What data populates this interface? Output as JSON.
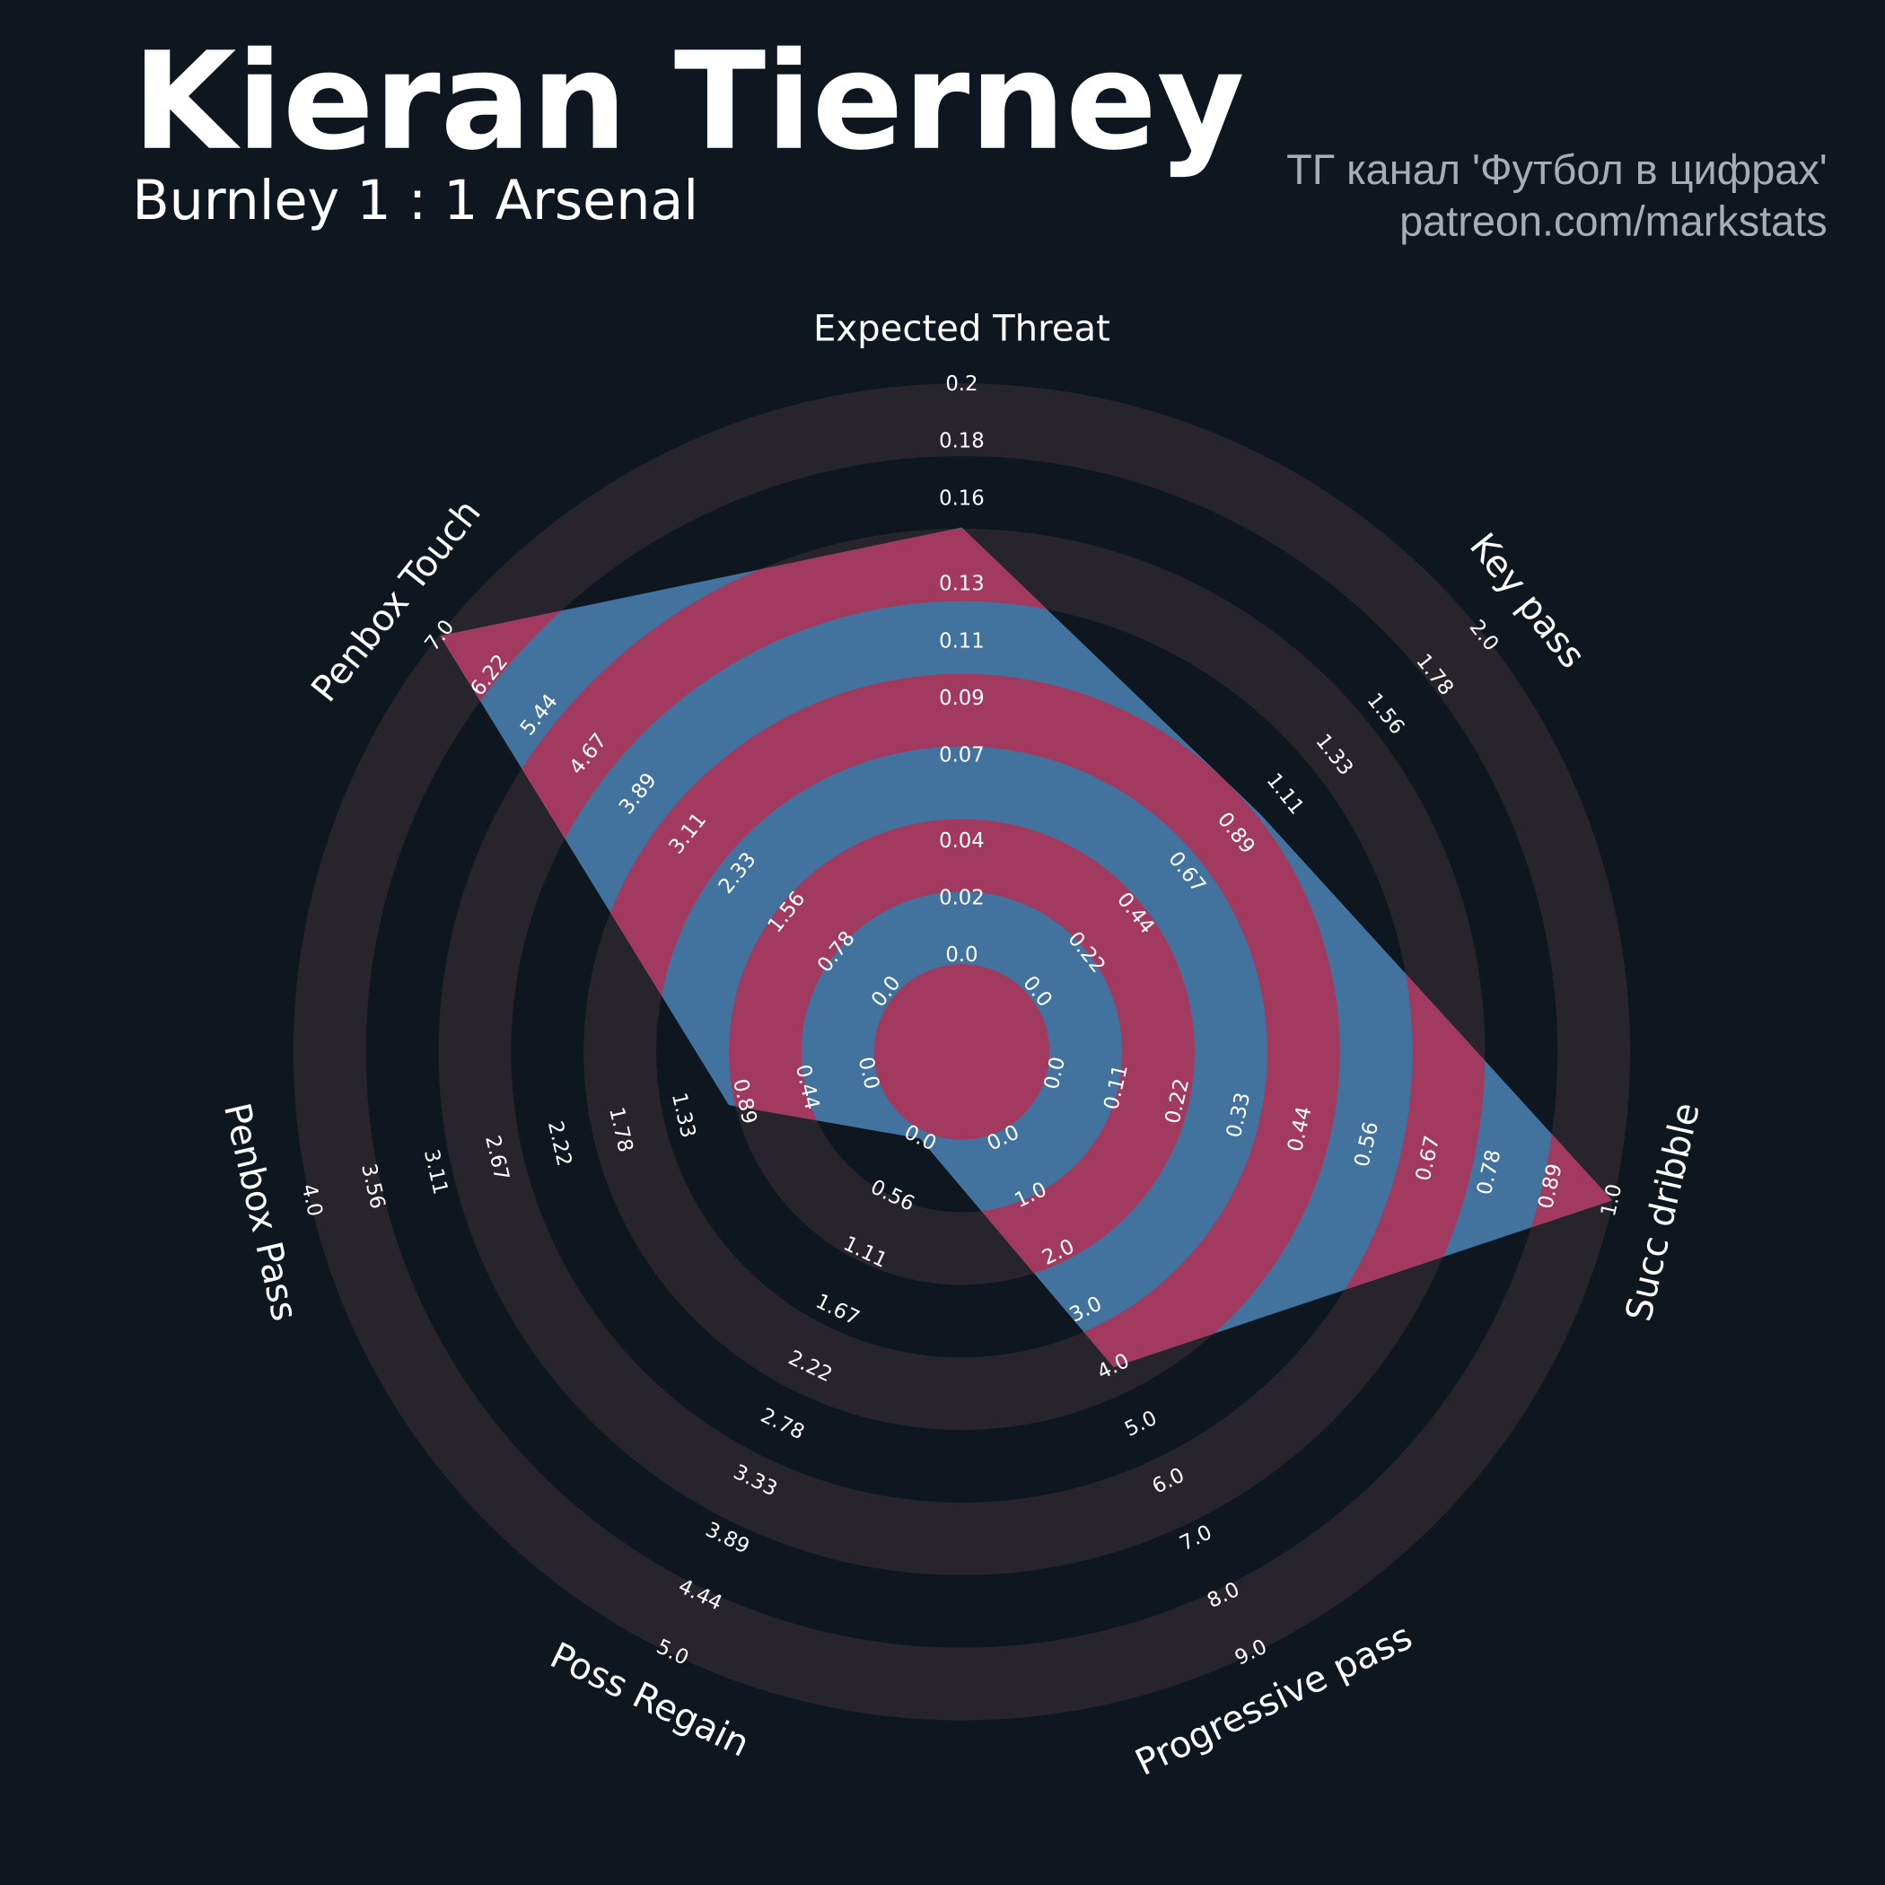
{
  "chart_data": {
    "type": "radar",
    "title": "Kieran Tierney",
    "subtitle": "Burnley 1 : 1 Arsenal",
    "annotations": [
      "ТГ канал 'Футбол в цифрах'",
      "patreon.com/markstats"
    ],
    "categories": [
      "Expected Threat",
      "Key pass",
      "Succ dribble",
      "Progressive pass",
      "Poss Regain",
      "Penbox Pass",
      "Penbox Touch"
    ],
    "values": [
      0.15,
      1.0,
      1.0,
      4.0,
      0,
      1.0,
      7.0
    ],
    "color": "#41739e",
    "ring_fill_color": "#a23a60",
    "ring_color": "#28242b",
    "background": "#0e1720",
    "axes": [
      {
        "ylim": [
          0,
          0.2
        ],
        "yticks": [
          {
            "value": 0,
            "label": "0.0"
          },
          0.02,
          0.04,
          0.07,
          0.09,
          0.11,
          0.13,
          0.16,
          0.18,
          0.2
        ]
      },
      {
        "ylim": [
          0,
          2
        ],
        "yticks": [
          {
            "value": 0,
            "label": "0.0"
          },
          0.22,
          0.44,
          0.67,
          0.89,
          1.11,
          1.33,
          1.56,
          1.78,
          {
            "value": 2,
            "label": "2.0"
          }
        ]
      },
      {
        "ylim": [
          0,
          1
        ],
        "yticks": [
          {
            "value": 0,
            "label": "0.0"
          },
          0.11,
          0.22,
          0.33,
          0.44,
          0.56,
          0.67,
          0.78,
          0.89,
          {
            "value": 1,
            "label": "1.0"
          }
        ]
      },
      {
        "ylim": [
          0,
          9
        ],
        "yticks": [
          {
            "value": 0,
            "label": "0.0"
          },
          {
            "value": 1,
            "label": "1.0"
          },
          {
            "value": 2,
            "label": "2.0"
          },
          {
            "value": 3,
            "label": "3.0"
          },
          {
            "value": 4,
            "label": "4.0"
          },
          {
            "value": 5,
            "label": "5.0"
          },
          {
            "value": 6,
            "label": "6.0"
          },
          {
            "value": 7,
            "label": "7.0"
          },
          {
            "value": 8,
            "label": "8.0"
          },
          {
            "value": 9,
            "label": "9.0"
          }
        ]
      },
      {
        "ylim": [
          0,
          5
        ],
        "yticks": [
          {
            "value": 0,
            "label": "0.0"
          },
          0.56,
          1.11,
          1.67,
          2.22,
          2.78,
          3.33,
          3.89,
          4.44,
          {
            "value": 5,
            "label": "5.0"
          }
        ]
      },
      {
        "ylim": [
          0,
          4
        ],
        "yticks": [
          {
            "value": 0,
            "label": "0.0"
          },
          0.44,
          0.89,
          1.33,
          1.78,
          2.22,
          2.67,
          3.11,
          3.56,
          {
            "value": 4,
            "label": "4.0"
          }
        ]
      },
      {
        "ylim": [
          0,
          7
        ],
        "yticks": [
          {
            "value": 0,
            "label": "0.0"
          },
          0.78,
          1.56,
          2.33,
          3.11,
          3.89,
          4.67,
          5.44,
          6.22,
          {
            "value": 7,
            "label": "7.0"
          }
        ]
      }
    ]
  }
}
